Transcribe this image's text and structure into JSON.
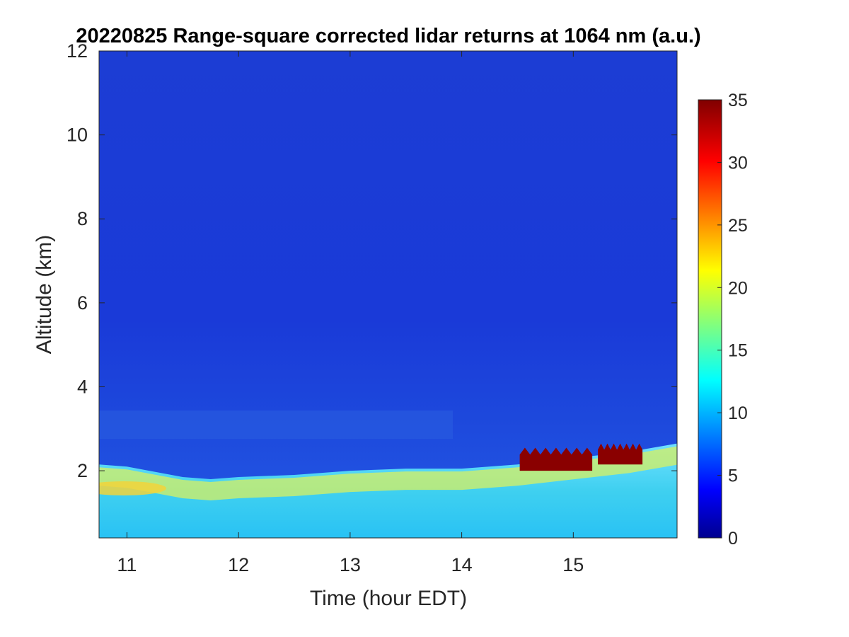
{
  "chart_data": {
    "type": "heatmap",
    "title": "20220825  Range-square corrected lidar returns at 1064 nm (a.u.)",
    "xlabel": "Time (hour EDT)",
    "ylabel": "Altitude (km)",
    "xlim": [
      10.75,
      15.93
    ],
    "ylim": [
      0.4,
      12
    ],
    "x_ticks": [
      "11",
      "12",
      "13",
      "14",
      "15"
    ],
    "y_ticks": [
      "2",
      "4",
      "6",
      "8",
      "10",
      "12"
    ],
    "colorbar": {
      "colormap": "jet",
      "range": [
        0,
        35
      ],
      "ticks": [
        "0",
        "5",
        "10",
        "15",
        "20",
        "25",
        "30",
        "35"
      ]
    },
    "boundary_layer_top_km": [
      {
        "t": 10.75,
        "z": 2.15
      },
      {
        "t": 11.0,
        "z": 2.1
      },
      {
        "t": 11.5,
        "z": 1.85
      },
      {
        "t": 11.75,
        "z": 1.8
      },
      {
        "t": 12.0,
        "z": 1.85
      },
      {
        "t": 12.5,
        "z": 1.9
      },
      {
        "t": 13.0,
        "z": 2.0
      },
      {
        "t": 13.5,
        "z": 2.05
      },
      {
        "t": 14.0,
        "z": 2.05
      },
      {
        "t": 14.5,
        "z": 2.15
      },
      {
        "t": 15.0,
        "z": 2.3
      },
      {
        "t": 15.5,
        "z": 2.45
      },
      {
        "t": 15.93,
        "z": 2.65
      }
    ],
    "cloud_layers": [
      {
        "t_start": 14.52,
        "t_end": 15.17,
        "z_base": 2.0,
        "z_top": 2.55,
        "value": 35
      },
      {
        "t_start": 15.22,
        "t_end": 15.62,
        "z_base": 2.15,
        "z_top": 2.65,
        "value": 35
      }
    ]
  }
}
